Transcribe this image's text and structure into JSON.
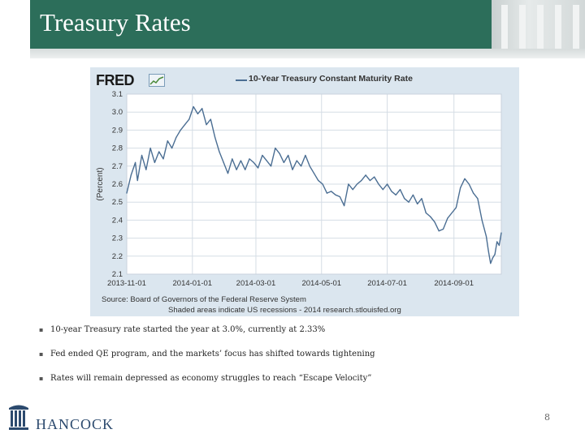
{
  "slide": {
    "title": "Treasury Rates",
    "page_number": "8",
    "logo_text": "HANCOCK"
  },
  "chart": {
    "brand": "FRED",
    "legend": "10-Year Treasury Constant Maturity Rate",
    "source": "Source: Board of Governors of the Federal Reserve System",
    "note": "Shaded areas indicate US recessions - 2014 research.stlouisfed.org"
  },
  "bullets": [
    "10-year Treasury rate started the year at 3.0%, currently at 2.33%",
    "Fed ended QE program, and the markets’ focus has shifted towards tightening",
    "Rates will remain depressed as economy struggles to reach “Escape Velocity”"
  ],
  "colors": {
    "title_bar": "#2c6e5a",
    "series": "#4b6e93",
    "chart_bg": "#dbe6ef"
  },
  "chart_data": {
    "type": "line",
    "title": "10-Year Treasury Constant Maturity Rate",
    "ylabel": "(Percent)",
    "xlabel": "",
    "ylim": [
      2.1,
      3.1
    ],
    "y_ticks": [
      "2.1",
      "2.2",
      "2.3",
      "2.4",
      "2.5",
      "2.6",
      "2.7",
      "2.8",
      "2.9",
      "3.0",
      "3.1"
    ],
    "x_ticks": [
      "2013-11-01",
      "2014-01-01",
      "2014-03-01",
      "2014-05-01",
      "2014-07-01",
      "2014-09-01"
    ],
    "x_index_range": [
      0,
      330
    ],
    "x_tick_positions": [
      0,
      61,
      120,
      181,
      242,
      304
    ],
    "series": [
      {
        "name": "10-Year Treasury Constant Maturity Rate",
        "points": [
          [
            0,
            2.55
          ],
          [
            4,
            2.65
          ],
          [
            8,
            2.72
          ],
          [
            10,
            2.62
          ],
          [
            14,
            2.76
          ],
          [
            18,
            2.68
          ],
          [
            22,
            2.8
          ],
          [
            26,
            2.72
          ],
          [
            30,
            2.78
          ],
          [
            34,
            2.74
          ],
          [
            38,
            2.84
          ],
          [
            42,
            2.8
          ],
          [
            46,
            2.86
          ],
          [
            50,
            2.9
          ],
          [
            54,
            2.93
          ],
          [
            58,
            2.96
          ],
          [
            62,
            3.03
          ],
          [
            66,
            2.99
          ],
          [
            70,
            3.02
          ],
          [
            74,
            2.93
          ],
          [
            78,
            2.96
          ],
          [
            82,
            2.86
          ],
          [
            86,
            2.78
          ],
          [
            90,
            2.72
          ],
          [
            94,
            2.66
          ],
          [
            98,
            2.74
          ],
          [
            102,
            2.68
          ],
          [
            106,
            2.73
          ],
          [
            110,
            2.68
          ],
          [
            114,
            2.74
          ],
          [
            118,
            2.72
          ],
          [
            122,
            2.69
          ],
          [
            126,
            2.76
          ],
          [
            130,
            2.73
          ],
          [
            134,
            2.7
          ],
          [
            138,
            2.8
          ],
          [
            142,
            2.77
          ],
          [
            146,
            2.72
          ],
          [
            150,
            2.76
          ],
          [
            154,
            2.68
          ],
          [
            158,
            2.73
          ],
          [
            162,
            2.7
          ],
          [
            166,
            2.76
          ],
          [
            170,
            2.7
          ],
          [
            174,
            2.66
          ],
          [
            178,
            2.62
          ],
          [
            182,
            2.6
          ],
          [
            186,
            2.55
          ],
          [
            190,
            2.56
          ],
          [
            194,
            2.54
          ],
          [
            198,
            2.53
          ],
          [
            202,
            2.48
          ],
          [
            206,
            2.6
          ],
          [
            210,
            2.57
          ],
          [
            214,
            2.6
          ],
          [
            218,
            2.62
          ],
          [
            222,
            2.65
          ],
          [
            226,
            2.62
          ],
          [
            230,
            2.64
          ],
          [
            234,
            2.6
          ],
          [
            238,
            2.57
          ],
          [
            242,
            2.6
          ],
          [
            246,
            2.56
          ],
          [
            250,
            2.54
          ],
          [
            254,
            2.57
          ],
          [
            258,
            2.52
          ],
          [
            262,
            2.5
          ],
          [
            266,
            2.54
          ],
          [
            270,
            2.49
          ],
          [
            274,
            2.52
          ],
          [
            278,
            2.44
          ],
          [
            282,
            2.42
          ],
          [
            286,
            2.39
          ],
          [
            290,
            2.34
          ],
          [
            294,
            2.35
          ],
          [
            298,
            2.41
          ],
          [
            302,
            2.44
          ],
          [
            306,
            2.47
          ],
          [
            310,
            2.58
          ],
          [
            314,
            2.63
          ],
          [
            318,
            2.6
          ],
          [
            322,
            2.55
          ],
          [
            326,
            2.52
          ],
          [
            330,
            2.4
          ],
          [
            334,
            2.31
          ],
          [
            336,
            2.23
          ],
          [
            338,
            2.16
          ],
          [
            340,
            2.19
          ],
          [
            342,
            2.21
          ],
          [
            344,
            2.28
          ],
          [
            346,
            2.26
          ],
          [
            348,
            2.33
          ]
        ]
      }
    ]
  }
}
